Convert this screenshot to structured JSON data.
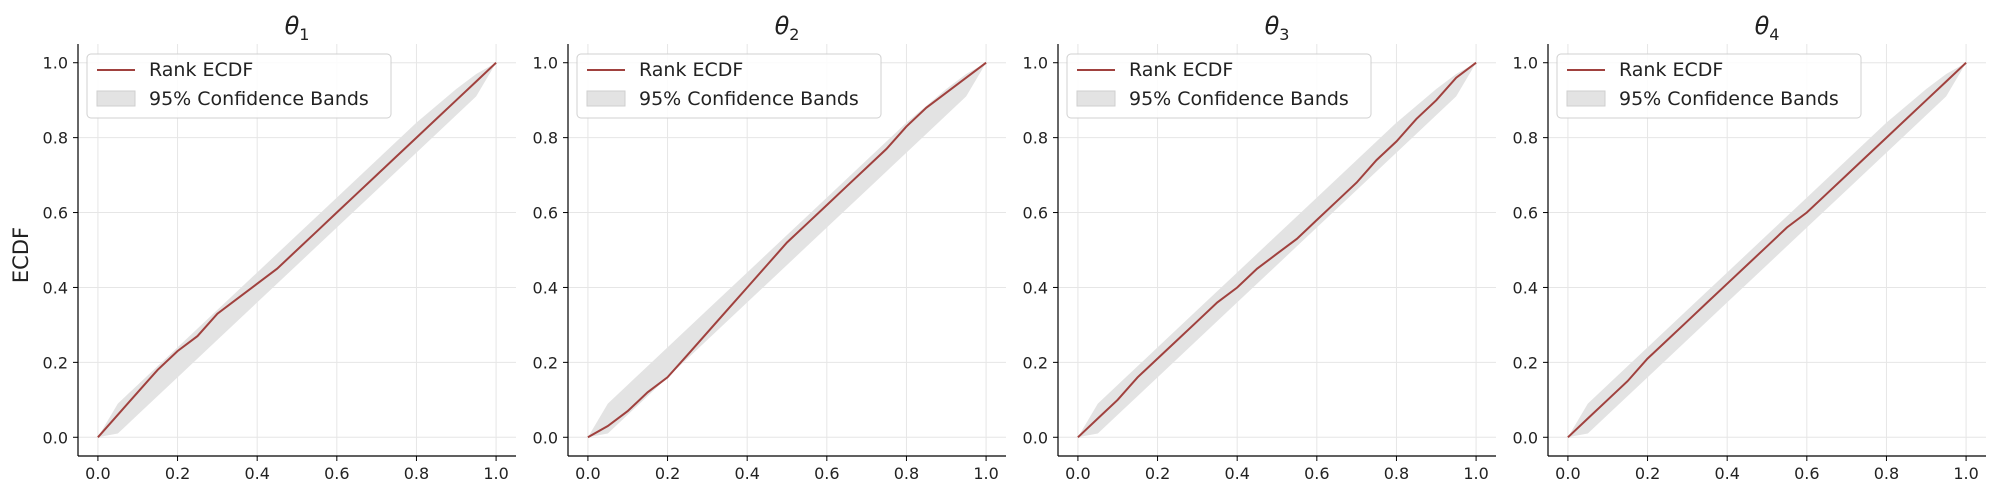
{
  "figure": {
    "ylabel": "ECDF"
  },
  "chart_data": [
    {
      "type": "line",
      "title": "θ",
      "title_subscript": "1",
      "xlim": [
        -0.05,
        1.05
      ],
      "ylim": [
        -0.05,
        1.05
      ],
      "x_ticks": [
        0.0,
        0.2,
        0.4,
        0.6,
        0.8,
        1.0
      ],
      "x_tick_labels": [
        "0.0",
        "0.2",
        "0.4",
        "0.6",
        "0.8",
        "1.0"
      ],
      "y_ticks": [
        0.0,
        0.2,
        0.4,
        0.6,
        0.8,
        1.0
      ],
      "y_tick_labels": [
        "0.0",
        "0.2",
        "0.4",
        "0.6",
        "0.8",
        "1.0"
      ],
      "grid": true,
      "legend_position": "top-left",
      "series": [
        {
          "name": "Rank ECDF",
          "color": "#a0413e",
          "x": [
            0.0,
            0.05,
            0.1,
            0.15,
            0.2,
            0.25,
            0.3,
            0.35,
            0.4,
            0.45,
            0.5,
            0.55,
            0.6,
            0.65,
            0.7,
            0.75,
            0.8,
            0.85,
            0.9,
            0.95,
            1.0
          ],
          "y": [
            0.0,
            0.06,
            0.12,
            0.18,
            0.23,
            0.27,
            0.33,
            0.37,
            0.41,
            0.45,
            0.5,
            0.55,
            0.6,
            0.65,
            0.7,
            0.75,
            0.8,
            0.85,
            0.9,
            0.95,
            1.0
          ]
        }
      ],
      "band": {
        "name": "95% Confidence Bands",
        "color": "#e3e3e3",
        "x": [
          0.0,
          0.05,
          0.1,
          0.2,
          0.3,
          0.4,
          0.5,
          0.6,
          0.7,
          0.8,
          0.9,
          0.95,
          1.0
        ],
        "lower": [
          0.0,
          0.01,
          0.06,
          0.16,
          0.26,
          0.36,
          0.46,
          0.56,
          0.66,
          0.76,
          0.86,
          0.91,
          1.0
        ],
        "upper": [
          0.0,
          0.09,
          0.14,
          0.24,
          0.34,
          0.44,
          0.54,
          0.64,
          0.74,
          0.84,
          0.93,
          0.97,
          1.0
        ]
      }
    },
    {
      "type": "line",
      "title": "θ",
      "title_subscript": "2",
      "xlim": [
        -0.05,
        1.05
      ],
      "ylim": [
        -0.05,
        1.05
      ],
      "x_ticks": [
        0.0,
        0.2,
        0.4,
        0.6,
        0.8,
        1.0
      ],
      "x_tick_labels": [
        "0.0",
        "0.2",
        "0.4",
        "0.6",
        "0.8",
        "1.0"
      ],
      "y_ticks": [
        0.0,
        0.2,
        0.4,
        0.6,
        0.8,
        1.0
      ],
      "y_tick_labels": [
        "0.0",
        "0.2",
        "0.4",
        "0.6",
        "0.8",
        "1.0"
      ],
      "grid": true,
      "legend_position": "top-left",
      "series": [
        {
          "name": "Rank ECDF",
          "color": "#a0413e",
          "x": [
            0.0,
            0.05,
            0.1,
            0.15,
            0.2,
            0.25,
            0.3,
            0.35,
            0.4,
            0.45,
            0.5,
            0.55,
            0.6,
            0.65,
            0.7,
            0.75,
            0.8,
            0.85,
            0.9,
            0.95,
            1.0
          ],
          "y": [
            0.0,
            0.03,
            0.07,
            0.12,
            0.16,
            0.22,
            0.28,
            0.34,
            0.4,
            0.46,
            0.52,
            0.57,
            0.62,
            0.67,
            0.72,
            0.77,
            0.83,
            0.88,
            0.92,
            0.96,
            1.0
          ]
        }
      ],
      "band": {
        "name": "95% Confidence Bands",
        "color": "#e3e3e3",
        "x": [
          0.0,
          0.05,
          0.1,
          0.2,
          0.3,
          0.4,
          0.5,
          0.6,
          0.7,
          0.8,
          0.9,
          0.95,
          1.0
        ],
        "lower": [
          0.0,
          0.01,
          0.06,
          0.16,
          0.26,
          0.36,
          0.46,
          0.56,
          0.66,
          0.76,
          0.86,
          0.91,
          1.0
        ],
        "upper": [
          0.0,
          0.09,
          0.14,
          0.24,
          0.34,
          0.44,
          0.54,
          0.64,
          0.74,
          0.84,
          0.93,
          0.97,
          1.0
        ]
      }
    },
    {
      "type": "line",
      "title": "θ",
      "title_subscript": "3",
      "xlim": [
        -0.05,
        1.05
      ],
      "ylim": [
        -0.05,
        1.05
      ],
      "x_ticks": [
        0.0,
        0.2,
        0.4,
        0.6,
        0.8,
        1.0
      ],
      "x_tick_labels": [
        "0.0",
        "0.2",
        "0.4",
        "0.6",
        "0.8",
        "1.0"
      ],
      "y_ticks": [
        0.0,
        0.2,
        0.4,
        0.6,
        0.8,
        1.0
      ],
      "y_tick_labels": [
        "0.0",
        "0.2",
        "0.4",
        "0.6",
        "0.8",
        "1.0"
      ],
      "grid": true,
      "legend_position": "top-left",
      "series": [
        {
          "name": "Rank ECDF",
          "color": "#a0413e",
          "x": [
            0.0,
            0.05,
            0.1,
            0.15,
            0.2,
            0.25,
            0.3,
            0.35,
            0.4,
            0.45,
            0.5,
            0.55,
            0.6,
            0.65,
            0.7,
            0.75,
            0.8,
            0.85,
            0.9,
            0.95,
            1.0
          ],
          "y": [
            0.0,
            0.05,
            0.1,
            0.16,
            0.21,
            0.26,
            0.31,
            0.36,
            0.4,
            0.45,
            0.49,
            0.53,
            0.58,
            0.63,
            0.68,
            0.74,
            0.79,
            0.85,
            0.9,
            0.96,
            1.0
          ]
        }
      ],
      "band": {
        "name": "95% Confidence Bands",
        "color": "#e3e3e3",
        "x": [
          0.0,
          0.05,
          0.1,
          0.2,
          0.3,
          0.4,
          0.5,
          0.6,
          0.7,
          0.8,
          0.9,
          0.95,
          1.0
        ],
        "lower": [
          0.0,
          0.01,
          0.06,
          0.16,
          0.26,
          0.36,
          0.46,
          0.56,
          0.66,
          0.76,
          0.86,
          0.91,
          1.0
        ],
        "upper": [
          0.0,
          0.09,
          0.14,
          0.24,
          0.34,
          0.44,
          0.54,
          0.64,
          0.74,
          0.84,
          0.93,
          0.97,
          1.0
        ]
      }
    },
    {
      "type": "line",
      "title": "θ",
      "title_subscript": "4",
      "xlim": [
        -0.05,
        1.05
      ],
      "ylim": [
        -0.05,
        1.05
      ],
      "x_ticks": [
        0.0,
        0.2,
        0.4,
        0.6,
        0.8,
        1.0
      ],
      "x_tick_labels": [
        "0.0",
        "0.2",
        "0.4",
        "0.6",
        "0.8",
        "1.0"
      ],
      "y_ticks": [
        0.0,
        0.2,
        0.4,
        0.6,
        0.8,
        1.0
      ],
      "y_tick_labels": [
        "0.0",
        "0.2",
        "0.4",
        "0.6",
        "0.8",
        "1.0"
      ],
      "grid": true,
      "legend_position": "top-left",
      "series": [
        {
          "name": "Rank ECDF",
          "color": "#a0413e",
          "x": [
            0.0,
            0.05,
            0.1,
            0.15,
            0.2,
            0.25,
            0.3,
            0.35,
            0.4,
            0.45,
            0.5,
            0.55,
            0.6,
            0.65,
            0.7,
            0.75,
            0.8,
            0.85,
            0.9,
            0.95,
            1.0
          ],
          "y": [
            0.0,
            0.05,
            0.1,
            0.15,
            0.21,
            0.26,
            0.31,
            0.36,
            0.41,
            0.46,
            0.51,
            0.56,
            0.6,
            0.65,
            0.7,
            0.75,
            0.8,
            0.85,
            0.9,
            0.95,
            1.0
          ]
        }
      ],
      "band": {
        "name": "95% Confidence Bands",
        "color": "#e3e3e3",
        "x": [
          0.0,
          0.05,
          0.1,
          0.2,
          0.3,
          0.4,
          0.5,
          0.6,
          0.7,
          0.8,
          0.9,
          0.95,
          1.0
        ],
        "lower": [
          0.0,
          0.01,
          0.06,
          0.16,
          0.26,
          0.36,
          0.46,
          0.56,
          0.66,
          0.76,
          0.86,
          0.91,
          1.0
        ],
        "upper": [
          0.0,
          0.09,
          0.14,
          0.24,
          0.34,
          0.44,
          0.54,
          0.64,
          0.74,
          0.84,
          0.93,
          0.97,
          1.0
        ]
      }
    }
  ]
}
